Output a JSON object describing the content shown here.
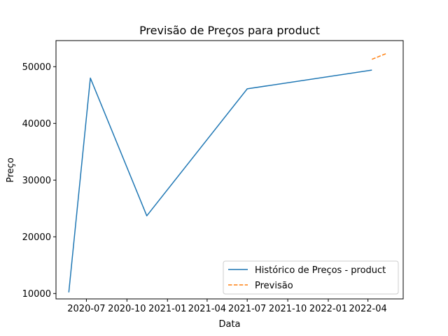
{
  "chart_data": {
    "type": "line",
    "title": "Previsão de Preços para product",
    "xlabel": "Data",
    "ylabel": "Preço",
    "x_type": "date",
    "xlim": [
      "2020-04-23",
      "2022-06-20"
    ],
    "ylim": [
      9050,
      54600
    ],
    "x_ticks": [
      "2020-07-01",
      "2020-10-01",
      "2021-01-01",
      "2021-04-01",
      "2021-07-01",
      "2021-10-01",
      "2022-01-01",
      "2022-04-01"
    ],
    "x_tick_labels": [
      "2020-07",
      "2020-10",
      "2021-01",
      "2021-04",
      "2021-07",
      "2021-10",
      "2022-01",
      "2022-04"
    ],
    "y_ticks": [
      10000,
      20000,
      30000,
      40000,
      50000
    ],
    "y_tick_labels": [
      "10000",
      "20000",
      "30000",
      "40000",
      "50000"
    ],
    "grid": false,
    "legend_position": "lower-right",
    "series": [
      {
        "name": "Histórico de Preços - product",
        "color": "#1f77b4",
        "style": "solid",
        "points": [
          {
            "x": "2020-05-22",
            "y": 10200
          },
          {
            "x": "2020-07-10",
            "y": 48000
          },
          {
            "x": "2020-11-15",
            "y": 23700
          },
          {
            "x": "2021-07-01",
            "y": 46100
          },
          {
            "x": "2022-04-10",
            "y": 49400
          }
        ]
      },
      {
        "name": "Previsão",
        "color": "#ff7f0e",
        "style": "dashed",
        "points": [
          {
            "x": "2022-04-10",
            "y": 51300
          },
          {
            "x": "2022-05-12",
            "y": 52300
          }
        ]
      }
    ]
  }
}
